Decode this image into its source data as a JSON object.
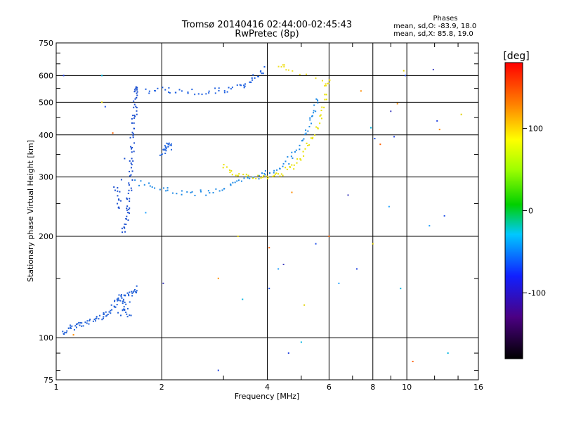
{
  "header": {
    "title_line1": "Tromsø 20140416 02:44:00-02:45:43",
    "title_line2": "RwPretec (8p)",
    "stats_title": "Phases",
    "stats_line1": "mean, sd,O: -83.9, 18.0",
    "stats_line2": "mean, sd,X: 85.8, 19.0"
  },
  "colorbar": {
    "label": "[deg]",
    "range": [
      -180,
      180
    ],
    "ticks": [
      {
        "label": "100",
        "value": 100
      },
      {
        "label": "0",
        "value": 0
      },
      {
        "label": "-100",
        "value": -100
      }
    ]
  },
  "chart_data": {
    "type": "scatter",
    "xlabel": "Frequency [MHz]",
    "ylabel": "Stationary phase Virtual Height [km]",
    "x_scale": "log",
    "y_scale": "log",
    "xlim": [
      1,
      16
    ],
    "ylim": [
      75,
      750
    ],
    "x_ticks": [
      {
        "label": "1",
        "value": 1
      },
      {
        "label": "2",
        "value": 2
      },
      {
        "label": "4",
        "value": 4
      },
      {
        "label": "6",
        "value": 6
      },
      {
        "label": "8",
        "value": 8
      },
      {
        "label": "10",
        "value": 10
      },
      {
        "label": "16",
        "value": 16
      }
    ],
    "y_ticks": [
      {
        "label": "750",
        "value": 750
      },
      {
        "label": "600",
        "value": 600
      },
      {
        "label": "500",
        "value": 500
      },
      {
        "label": "400",
        "value": 400
      },
      {
        "label": "300",
        "value": 300
      },
      {
        "label": "200",
        "value": 200
      },
      {
        "label": "100",
        "value": 100
      },
      {
        "label": "75",
        "value": 75
      }
    ],
    "grid": true,
    "color_variable": "phase [deg]",
    "series": [
      {
        "description": "E / F1 region trace (lower track)",
        "color": "#1f5fd8",
        "points": [
          [
            1.05,
            103
          ],
          [
            1.08,
            105
          ],
          [
            1.12,
            108
          ],
          [
            1.17,
            110
          ],
          [
            1.22,
            110
          ],
          [
            1.28,
            113
          ],
          [
            1.33,
            115
          ],
          [
            1.38,
            117
          ],
          [
            1.43,
            120
          ],
          [
            1.47,
            125
          ],
          [
            1.5,
            128
          ],
          [
            1.53,
            132
          ],
          [
            1.56,
            128
          ],
          [
            1.6,
            135
          ],
          [
            1.65,
            138
          ],
          [
            1.7,
            140
          ],
          [
            1.52,
            118
          ],
          [
            1.58,
            122
          ],
          [
            1.62,
            115
          ]
        ]
      },
      {
        "description": "F1 cusp near 1.6 MHz",
        "color": "#1a4fd0",
        "points": [
          [
            1.55,
            205
          ],
          [
            1.58,
            215
          ],
          [
            1.6,
            230
          ],
          [
            1.6,
            250
          ],
          [
            1.62,
            270
          ],
          [
            1.63,
            300
          ],
          [
            1.64,
            330
          ],
          [
            1.65,
            360
          ],
          [
            1.66,
            400
          ],
          [
            1.67,
            440
          ],
          [
            1.68,
            480
          ],
          [
            1.69,
            520
          ],
          [
            1.7,
            545
          ],
          [
            1.72,
            550
          ],
          [
            1.5,
            240
          ],
          [
            1.52,
            260
          ],
          [
            1.48,
            280
          ]
        ]
      },
      {
        "description": "F1 extension at 2.0-2.1 MHz",
        "color": "#2c6ce0",
        "points": [
          [
            2.0,
            350
          ],
          [
            2.03,
            360
          ],
          [
            2.06,
            370
          ],
          [
            2.1,
            375
          ],
          [
            2.12,
            365
          ]
        ]
      },
      {
        "description": "F2 ordinary trace (lower)",
        "color": "#1e8ae6",
        "points": [
          [
            1.7,
            290
          ],
          [
            1.9,
            280
          ],
          [
            2.1,
            272
          ],
          [
            2.4,
            268
          ],
          [
            2.7,
            270
          ],
          [
            3.0,
            278
          ],
          [
            3.3,
            288
          ],
          [
            3.6,
            298
          ],
          [
            3.9,
            305
          ],
          [
            4.2,
            315
          ],
          [
            4.5,
            330
          ],
          [
            4.8,
            355
          ],
          [
            5.1,
            390
          ],
          [
            5.3,
            430
          ],
          [
            5.45,
            470
          ],
          [
            5.55,
            510
          ]
        ]
      },
      {
        "description": "F2 extraordinary trace (lower, yellow)",
        "color": "#e8e000",
        "points": [
          [
            3.0,
            325
          ],
          [
            3.2,
            310
          ],
          [
            3.45,
            302
          ],
          [
            3.8,
            298
          ],
          [
            4.1,
            300
          ],
          [
            4.4,
            308
          ],
          [
            4.7,
            320
          ],
          [
            5.0,
            340
          ],
          [
            5.3,
            380
          ],
          [
            5.55,
            420
          ],
          [
            5.75,
            470
          ],
          [
            5.9,
            530
          ]
        ]
      },
      {
        "description": "Upper echo trace (multiple hop)",
        "color": "#1d5fe0",
        "points": [
          [
            1.8,
            540
          ],
          [
            2.0,
            545
          ],
          [
            2.2,
            540
          ],
          [
            2.5,
            535
          ],
          [
            2.8,
            540
          ],
          [
            3.1,
            545
          ],
          [
            3.35,
            555
          ],
          [
            3.55,
            575
          ],
          [
            3.75,
            600
          ],
          [
            3.9,
            630
          ]
        ]
      },
      {
        "description": "Upper yellow echoes",
        "color": "#f0e020",
        "points": [
          [
            4.35,
            640
          ],
          [
            4.55,
            630
          ],
          [
            5.9,
            560
          ],
          [
            5.95,
            580
          ]
        ]
      }
    ],
    "scattered_points": [
      [
        1.05,
        600
      ],
      [
        1.12,
        102
      ],
      [
        1.35,
        600
      ],
      [
        1.35,
        500
      ],
      [
        1.38,
        485
      ],
      [
        1.45,
        405
      ],
      [
        1.8,
        235
      ],
      [
        2.02,
        145
      ],
      [
        2.9,
        80
      ],
      [
        2.9,
        150
      ],
      [
        3.4,
        130
      ],
      [
        3.3,
        200
      ],
      [
        4.05,
        140
      ],
      [
        4.05,
        185
      ],
      [
        4.3,
        160
      ],
      [
        4.45,
        165
      ],
      [
        4.6,
        90
      ],
      [
        4.7,
        270
      ],
      [
        5.0,
        97
      ],
      [
        5.1,
        125
      ],
      [
        5.5,
        190
      ],
      [
        6.0,
        200
      ],
      [
        6.4,
        145
      ],
      [
        6.8,
        265
      ],
      [
        7.2,
        160
      ],
      [
        7.4,
        540
      ],
      [
        7.9,
        420
      ],
      [
        8.0,
        190
      ],
      [
        8.1,
        390
      ],
      [
        8.4,
        375
      ],
      [
        8.9,
        245
      ],
      [
        9.0,
        470
      ],
      [
        9.2,
        395
      ],
      [
        9.4,
        495
      ],
      [
        9.6,
        140
      ],
      [
        9.8,
        620
      ],
      [
        9.9,
        600
      ],
      [
        10.4,
        85
      ],
      [
        11.6,
        215
      ],
      [
        11.9,
        625
      ],
      [
        12.2,
        440
      ],
      [
        12.4,
        415
      ],
      [
        13.1,
        90
      ],
      [
        14.3,
        460
      ],
      [
        12.8,
        230
      ]
    ]
  }
}
